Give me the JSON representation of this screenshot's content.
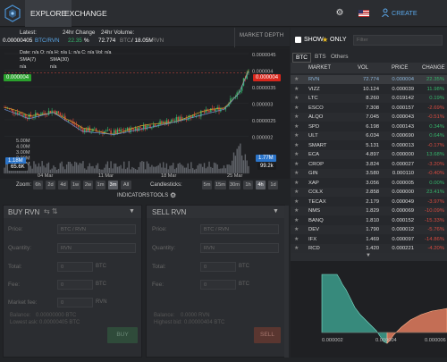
{
  "nav": {
    "explore": "EXPLORE",
    "exchange": "EXCHANGE",
    "create_account": "CREATE ACCOUNT"
  },
  "stats": {
    "latest_label": "Latest:",
    "latest_value": "0.00000405",
    "latest_pair": "BTC/RVN",
    "change_label": "24hr Change",
    "change_value": "22.35",
    "change_unit": "%",
    "volume_label": "24hr Volume:",
    "volume_value": "72.774",
    "volume_unit": "BTC",
    "volume_btc": "/ 18.05M",
    "volume_unit2": "RVN"
  },
  "market_depth_label": "MARKET DEPTH",
  "chart": {
    "legend1": "Date: n/a O: n/a H: n/a L: n/a C: n/a Vol: n/a",
    "legend_sma1": "SMA(7)",
    "legend_sma1_val": "n/a",
    "legend_sma2": "SMA(30)",
    "legend_sma2_val": "n/a",
    "price_ticks": [
      "0.0000045",
      "0.000004",
      "0.0000035",
      "0.000003",
      "0.0000025",
      "0.000002"
    ],
    "vol_ticks": [
      "5.00M",
      "4.00M",
      "3.00M",
      "2.00M",
      "1.00M"
    ],
    "date_ticks": [
      "04 Mar",
      "11 Mar",
      "18 Mar",
      "25 Mar"
    ],
    "left_tag": "0.000004",
    "right_tag": "0.000004",
    "vol_tag": "1.18M",
    "vol_tag2": "65.6K",
    "right_vol_tag": "1.77M",
    "right_vol2": "99.2k"
  },
  "chart_data": {
    "type": "candlestick",
    "x": [
      "04 Mar",
      "11 Mar",
      "18 Mar",
      "25 Mar"
    ],
    "close": [
      2.8e-06,
      2.2e-06,
      2.3e-06,
      4e-06
    ],
    "ylim": [
      2e-06,
      4.6e-06
    ]
  },
  "zoom": {
    "label": "Zoom:",
    "buttons": [
      "6h",
      "2d",
      "4d",
      "1w",
      "2w",
      "1m",
      "3m",
      "All"
    ],
    "selected": "3m"
  },
  "candles": {
    "label": "Candlesticks:",
    "buttons": [
      "5m",
      "15m",
      "30m",
      "1h",
      "4h",
      "1d"
    ],
    "selected": "4h"
  },
  "tools": {
    "indicators": "INDICATORS",
    "tools": "TOOLS"
  },
  "buy": {
    "title": "BUY RVN",
    "price": "Price:",
    "price_ph": "BTC / RVN",
    "quantity": "Quantity:",
    "quantity_ph": "RVN",
    "total": "Total:",
    "total_val": "0",
    "total_unit": "BTC",
    "fee": "Fee:",
    "fee_val": "0",
    "fee_unit": "BTC",
    "market_fee": "Market fee:",
    "mf_val": "0",
    "mf_unit": "RVN",
    "balance": "Balance:",
    "balance_val": "0.00000000 BTC",
    "lowest": "Lowest ask:",
    "lowest_val": "0.00000405 BTC",
    "button": "BUY"
  },
  "sell": {
    "title": "SELL RVN",
    "price": "Price:",
    "price_ph": "BTC / RVN",
    "quantity": "Quantity:",
    "quantity_ph": "RVN",
    "total": "Total:",
    "total_val": "0",
    "total_unit": "BTC",
    "fee": "Fee:",
    "fee_val": "0",
    "fee_unit": "BTC",
    "balance": "Balance:",
    "balance_val": "0.0000 RVN",
    "highest": "Highest bid:",
    "highest_val": "0.00000404 BTC",
    "button": "SELL"
  },
  "market": {
    "show_label": "SHOW",
    "only_label": "ONLY",
    "filter_ph": "Filter",
    "tabs": [
      "BTC",
      "BTS",
      "Others"
    ],
    "headers": [
      "MARKET",
      "VOL",
      "PRICE",
      "CHANGE"
    ],
    "rows": [
      {
        "m": "RVN",
        "v": "72.774",
        "p": "0.000004",
        "c": "22.35%",
        "up": true,
        "sel": true
      },
      {
        "m": "VIZZ",
        "v": "10.124",
        "p": "0.000039",
        "c": "11.98%",
        "up": true
      },
      {
        "m": "LTC",
        "v": "8.260",
        "p": "0.019142",
        "c": "0.19%",
        "up": true
      },
      {
        "m": "ESCO",
        "v": "7.308",
        "p": "0.000157",
        "c": "-2.69%",
        "up": false
      },
      {
        "m": "ALQO",
        "v": "7.045",
        "p": "0.000043",
        "c": "-0.51%",
        "up": false
      },
      {
        "m": "SPD",
        "v": "6.198",
        "p": "0.000143",
        "c": "0.34%",
        "up": true
      },
      {
        "m": "ULT",
        "v": "6.034",
        "p": "0.000690",
        "c": "0.64%",
        "up": true
      },
      {
        "m": "SMART",
        "v": "5.131",
        "p": "0.000013",
        "c": "-0.17%",
        "up": false
      },
      {
        "m": "ECA",
        "v": "4.897",
        "p": "0.000000",
        "c": "13.68%",
        "up": true
      },
      {
        "m": "CROP",
        "v": "3.824",
        "p": "0.000027",
        "c": "-3.20%",
        "up": false
      },
      {
        "m": "GIN",
        "v": "3.580",
        "p": "0.000110",
        "c": "-0.40%",
        "up": false
      },
      {
        "m": "XAP",
        "v": "3.056",
        "p": "0.000005",
        "c": "0.00%",
        "up": true
      },
      {
        "m": "COLX",
        "v": "2.858",
        "p": "0.000000",
        "c": "23.41%",
        "up": true
      },
      {
        "m": "TECAX",
        "v": "2.179",
        "p": "0.000049",
        "c": "-3.97%",
        "up": false
      },
      {
        "m": "NMS",
        "v": "1.829",
        "p": "0.000069",
        "c": "-10.09%",
        "up": false
      },
      {
        "m": "BANQ",
        "v": "1.810",
        "p": "0.000152",
        "c": "-15.33%",
        "up": false
      },
      {
        "m": "DEV",
        "v": "1.790",
        "p": "0.000012",
        "c": "-5.76%",
        "up": false
      },
      {
        "m": "IFX",
        "v": "1.469",
        "p": "0.000097",
        "c": "-14.86%",
        "up": false
      },
      {
        "m": "RCD",
        "v": "1.420",
        "p": "0.000221",
        "c": "-4.20%",
        "up": false
      }
    ]
  },
  "depth": {
    "ticks": [
      "0.000002",
      "0.000004",
      "0.000006"
    ],
    "bid_color": "#3c9e8c",
    "ask_color": "#e27c5e"
  },
  "colors": {
    "up": "#35b56b",
    "down": "#d84a3f",
    "accent": "#5aa7e8"
  }
}
